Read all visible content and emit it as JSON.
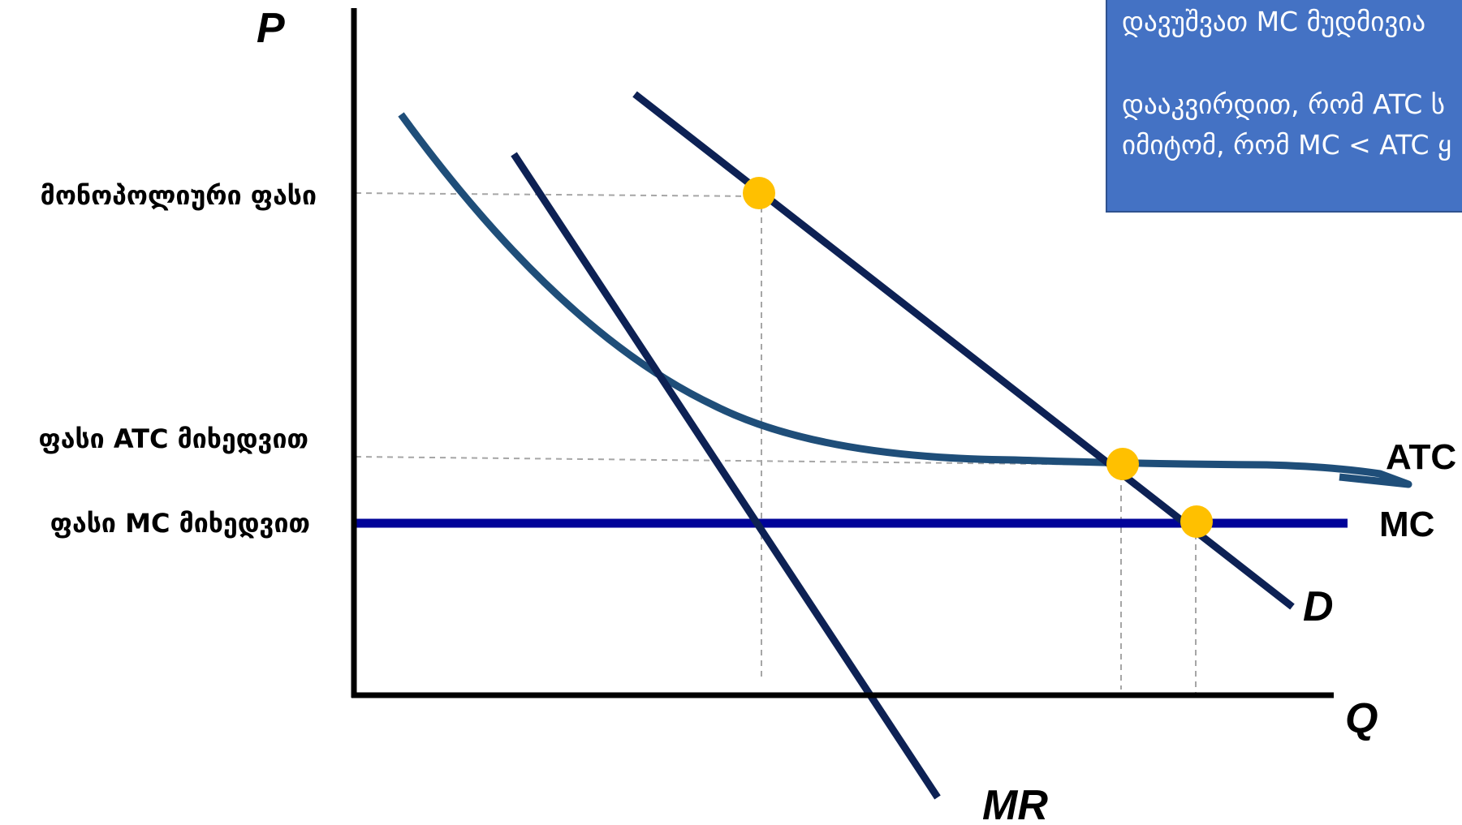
{
  "axes": {
    "y": "P",
    "x": "Q"
  },
  "price_labels": {
    "monopoly": "მონოპოლიური ფასი",
    "atc": "ფასი ATC მიხედვით",
    "mc": "ფასი MC მიხედვით"
  },
  "curves": {
    "atc": "ATC",
    "mc": "MC",
    "demand": "D",
    "mr": "MR"
  },
  "note": {
    "line1": "დავუშვათ MC მუდმივია",
    "line2": "დააკვირდით, რომ ATC ს",
    "line3": "იმიტომ, რომ MC < ATC ყ"
  },
  "colors": {
    "demand": "#0d2154",
    "mr": "#0d2154",
    "atc": "#1f4e79",
    "mc": "#000399",
    "point": "#ffc000",
    "guide": "#a6a6a6",
    "note_bg": "#4472c4"
  }
}
